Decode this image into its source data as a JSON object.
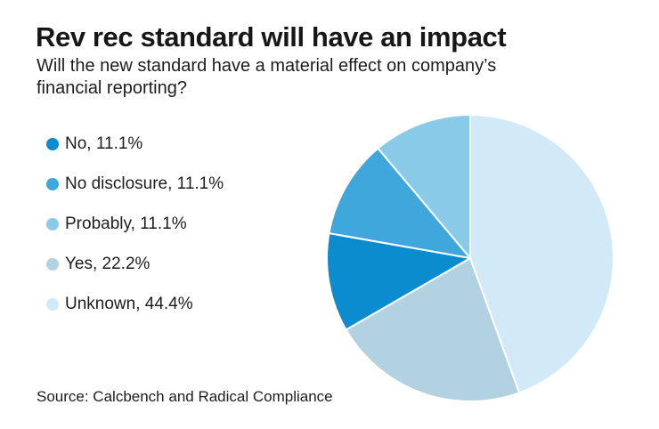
{
  "title": "Rev rec standard will have an impact",
  "subtitle_lines": [
    "Will the new standard have a material effect on company’s",
    "financial reporting?"
  ],
  "source": "Source: Calcbench and Radical Compliance",
  "colors": {
    "background": "#ffffff",
    "text": "#1d1d1d",
    "slice_border": "#ffffff"
  },
  "chart_data": {
    "type": "pie",
    "title": "Rev rec standard will have an impact",
    "subtitle": "Will the new standard have a material effect on company’s financial reporting?",
    "legend_position": "left",
    "start_angle_deg": 0,
    "direction": "clockwise",
    "slices": [
      {
        "label": "No",
        "value": 11.1,
        "color": "#0a8cce"
      },
      {
        "label": "No disclosure",
        "value": 11.1,
        "color": "#3fa7db"
      },
      {
        "label": "Probably",
        "value": 11.1,
        "color": "#89cae9"
      },
      {
        "label": "Yes",
        "value": 22.2,
        "color": "#b2d2e2"
      },
      {
        "label": "Unknown",
        "value": 44.4,
        "color": "#d2e9f8"
      }
    ],
    "draw_order_clockwise_from_top": [
      "Unknown",
      "Yes",
      "No",
      "No disclosure",
      "Probably"
    ]
  }
}
